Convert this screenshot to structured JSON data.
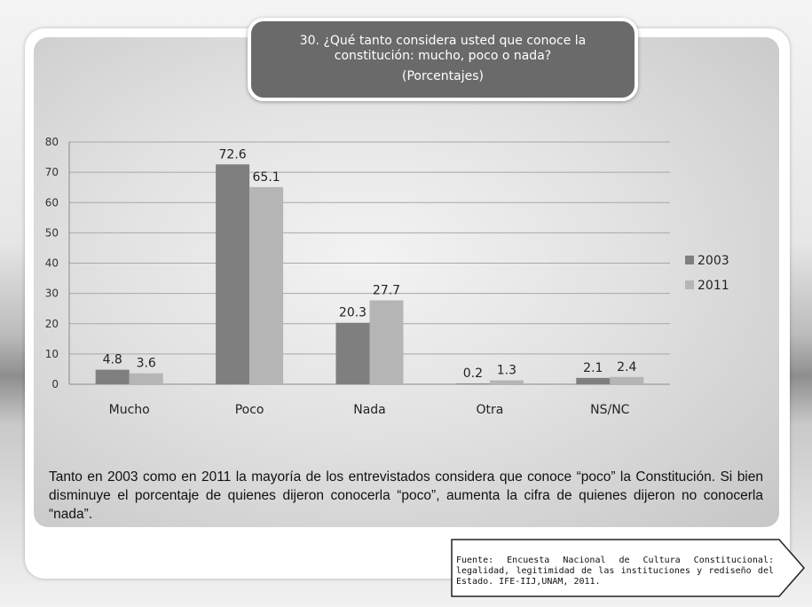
{
  "title": {
    "question": "30. ¿Qué tanto considera usted que conoce la constitución: mucho, poco o nada?",
    "subtitle": "(Porcentajes)"
  },
  "chart_data": {
    "type": "bar",
    "categories": [
      "Mucho",
      "Poco",
      "Nada",
      "Otra",
      "NS/NC"
    ],
    "series": [
      {
        "name": "2003",
        "values": [
          4.8,
          72.6,
          20.3,
          0.2,
          2.1
        ],
        "color": "#7f7f7f"
      },
      {
        "name": "2011",
        "values": [
          3.6,
          65.1,
          27.7,
          1.3,
          2.4
        ],
        "color": "#b5b5b5"
      }
    ],
    "ylim": [
      0,
      80
    ],
    "yticks": [
      0,
      10,
      20,
      30,
      40,
      50,
      60,
      70,
      80
    ],
    "grid": true,
    "legend": "right"
  },
  "summary": "Tanto en 2003 como en 2011 la mayoría de los entrevistados considera que conoce “poco” la Constitución. Si bien disminuye el porcentaje de quienes dijeron conocerla “poco”, aumenta la cifra de quienes dijeron no conocerla “nada”.",
  "source": "Fuente: Encuesta Nacional de Cultura Constitucional: legalidad, legitimidad de las instituciones y rediseño del Estado. IFE-IIJ,UNAM, 2011."
}
